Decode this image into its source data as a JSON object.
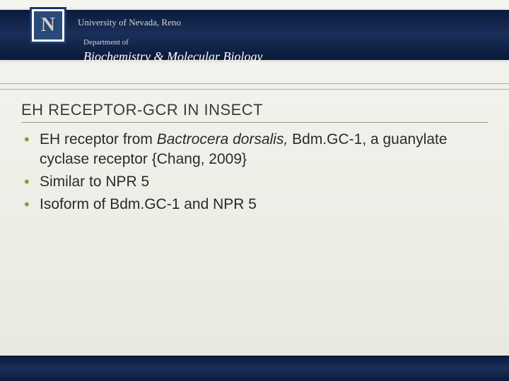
{
  "header": {
    "logo_letter": "N",
    "university": "University of Nevada, Reno",
    "dept_label": "Department of",
    "dept_name": "Biochemistry & Molecular Biology"
  },
  "slide": {
    "title": "EH RECEPTOR-GCR IN INSECT",
    "bullets": [
      {
        "pre": "EH receptor from ",
        "italic": "Bactrocera dorsalis,",
        "post": " Bdm.GC-1, a guanylate cyclase receptor {Chang, 2009}"
      },
      {
        "pre": "Similar to NPR 5",
        "italic": "",
        "post": ""
      },
      {
        "pre": "Isoform of Bdm.GC-1 and NPR 5",
        "italic": "",
        "post": ""
      }
    ]
  },
  "colors": {
    "header_band": "#0a1a3a",
    "bullet_accent": "#7aa43a",
    "body_bg_top": "#f5f5f0",
    "body_bg_bottom": "#e8e8e0",
    "title_underline": "#9a9a8a",
    "text": "#2a2a2a"
  }
}
